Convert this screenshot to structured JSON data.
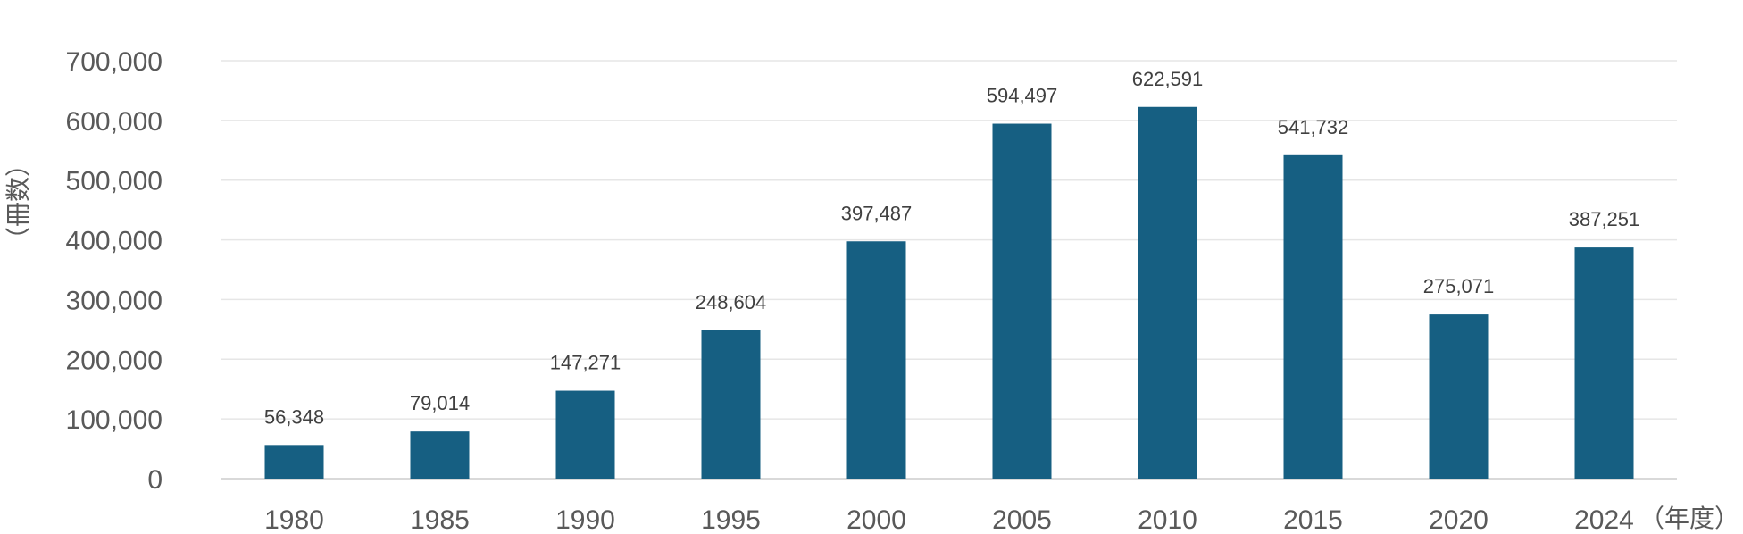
{
  "chart_data": {
    "type": "bar",
    "categories": [
      "1980",
      "1985",
      "1990",
      "1995",
      "2000",
      "2005",
      "2010",
      "2015",
      "2020",
      "2024"
    ],
    "values": [
      56348,
      79014,
      147271,
      248604,
      397487,
      594497,
      622591,
      541732,
      275071,
      387251
    ],
    "data_labels": [
      "56,348",
      "79,014",
      "147,271",
      "248,604",
      "397,487",
      "594,497",
      "622,591",
      "541,732",
      "275,071",
      "387,251"
    ],
    "title": "",
    "xlabel": "（年度）",
    "ylabel": "（冊数）",
    "ylim": [
      0,
      700000
    ],
    "yticks": [
      "0",
      "100,000",
      "200,000",
      "300,000",
      "400,000",
      "500,000",
      "600,000",
      "700,000"
    ],
    "grid": true,
    "legend": "none",
    "colors": {
      "bar": "#165f82"
    }
  }
}
